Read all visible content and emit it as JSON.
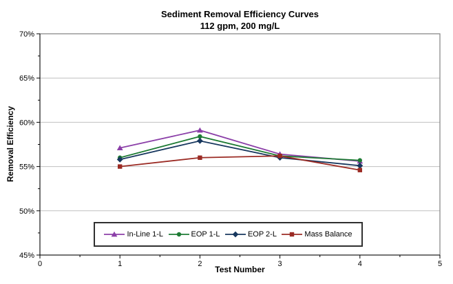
{
  "chart_data": {
    "type": "line",
    "title": "Sediment Removal Efficiency Curves",
    "subtitle": "112 gpm, 200 mg/L",
    "xlabel": "Test Number",
    "ylabel": "Removal Efficiency",
    "xlim": [
      0,
      5
    ],
    "ylim": [
      45,
      70
    ],
    "x": [
      1,
      2,
      3,
      4
    ],
    "x_ticks": [
      0,
      1,
      2,
      3,
      4,
      5
    ],
    "y_ticks": [
      {
        "value": 70,
        "label": "70%"
      },
      {
        "value": 65,
        "label": "65%"
      },
      {
        "value": 60,
        "label": "60%"
      },
      {
        "value": 55,
        "label": "55%"
      },
      {
        "value": 50,
        "label": "50%"
      },
      {
        "value": 45,
        "label": "45%"
      }
    ],
    "y_gridlines": [
      65,
      60,
      55,
      50
    ],
    "y_minor_step": 2.5,
    "x_minor_step": 0.5,
    "grid": "horizontal-major",
    "legend_position": "bottom-center-inside",
    "series": [
      {
        "name": "In-Line 1-L",
        "color": "#8B3FA8",
        "marker": "triangle",
        "values": [
          57.1,
          59.1,
          56.4,
          55.6
        ]
      },
      {
        "name": "EOP 1-L",
        "color": "#1E7B34",
        "marker": "circle",
        "values": [
          56.0,
          58.4,
          56.2,
          55.7
        ]
      },
      {
        "name": "EOP 2-L",
        "color": "#17375E",
        "marker": "diamond",
        "values": [
          55.8,
          57.9,
          56.0,
          55.1
        ]
      },
      {
        "name": "Mass Balance",
        "color": "#9B2B24",
        "marker": "square",
        "values": [
          55.0,
          56.0,
          56.2,
          54.6
        ]
      }
    ],
    "colors": {
      "background": "#ffffff",
      "plot_border": "#808080",
      "gridline": "#bfbfbf",
      "axis": "#000000",
      "text": "#000000"
    }
  }
}
